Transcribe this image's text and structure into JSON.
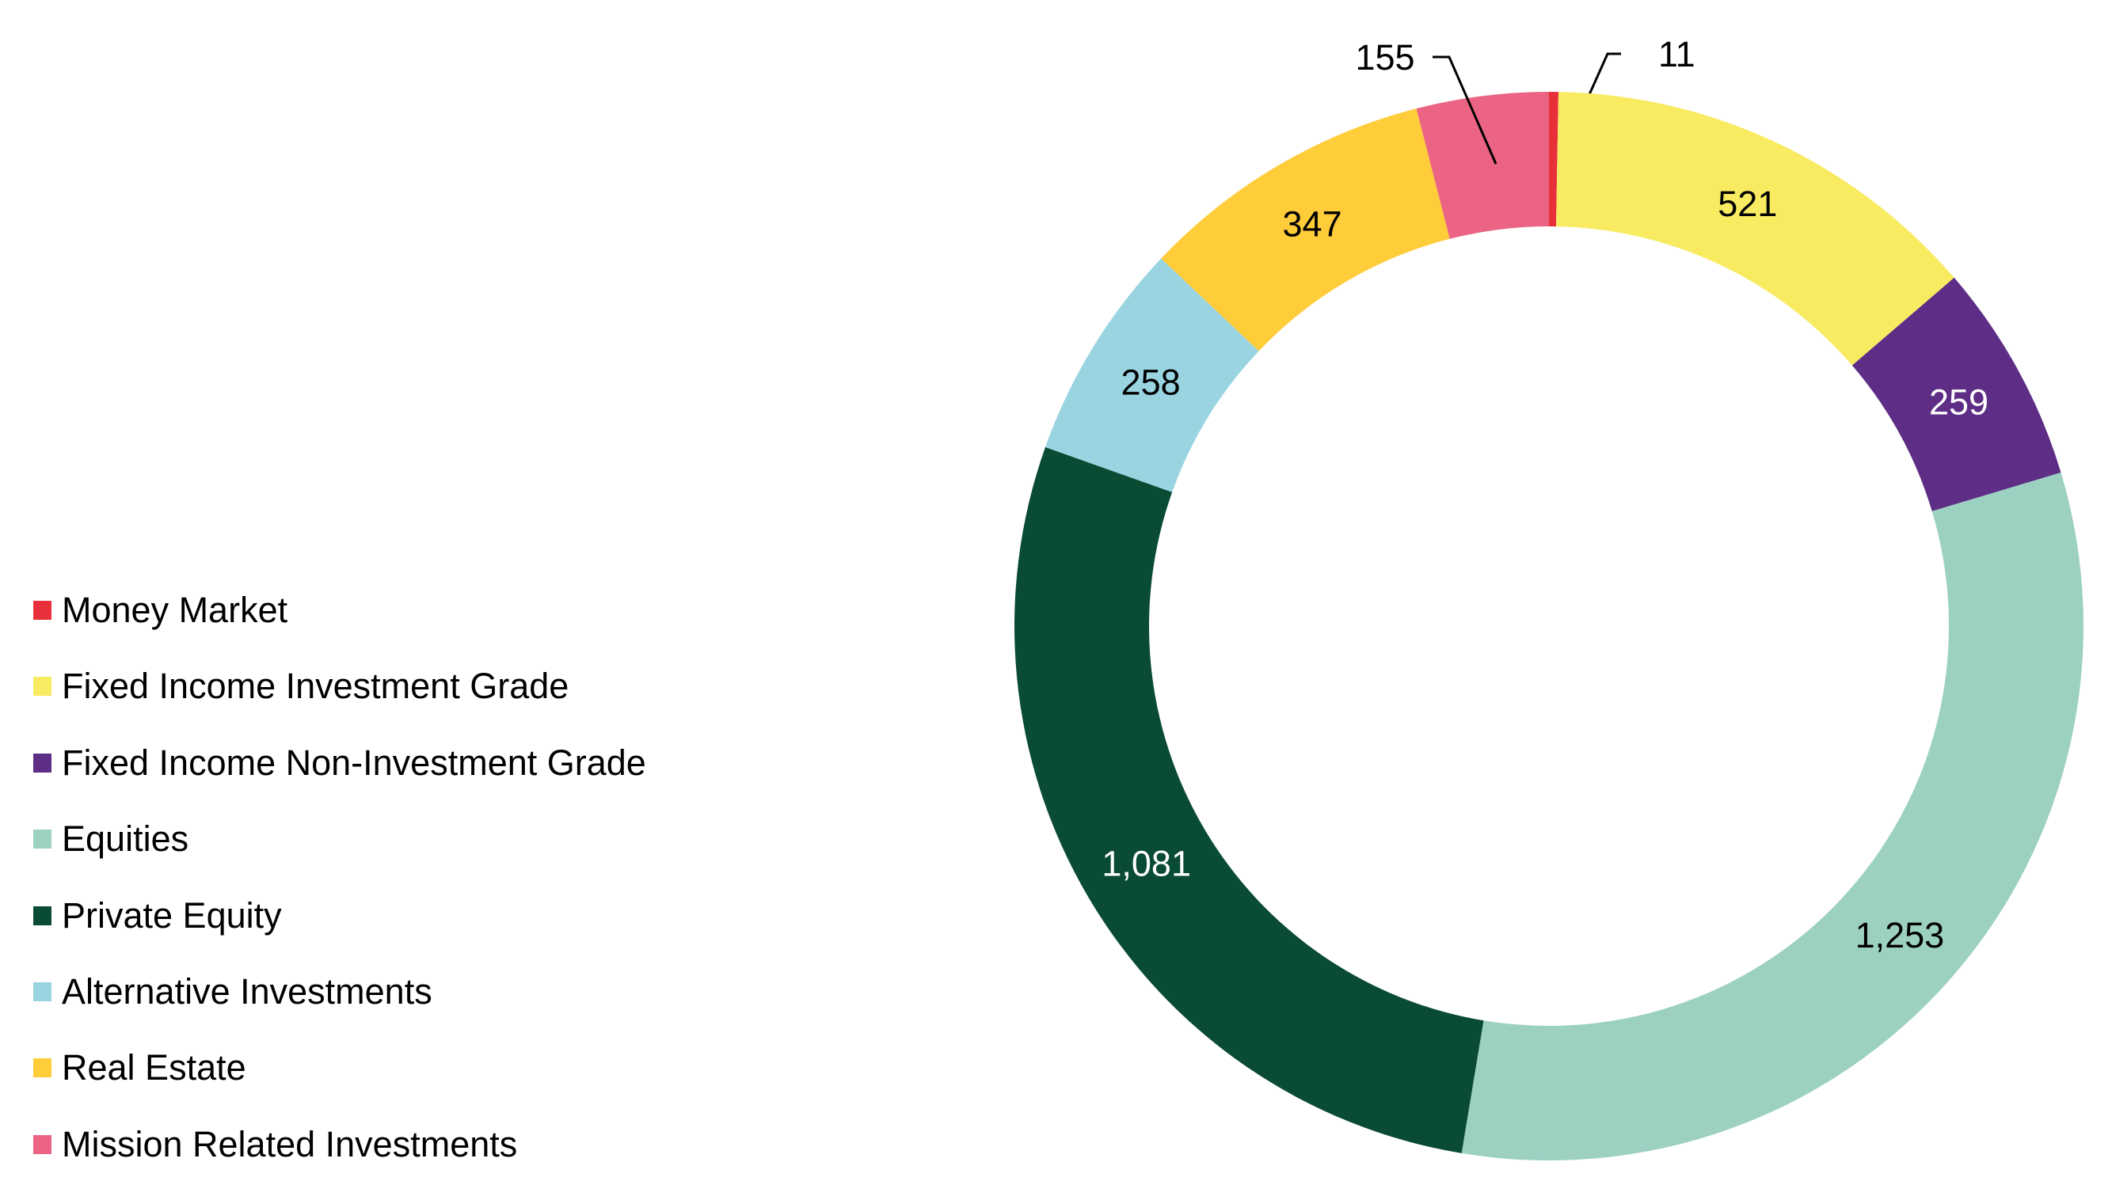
{
  "chart_data": {
    "type": "pie",
    "variant": "donut",
    "title": "",
    "legend_position": "left",
    "series": [
      {
        "name": "Money Market",
        "value": 11,
        "label": "11",
        "color": "#E8303A",
        "label_color": "#000000"
      },
      {
        "name": "Fixed Income Investment Grade",
        "value": 521,
        "label": "521",
        "color": "#F8EB62",
        "label_color": "#000000"
      },
      {
        "name": "Fixed Income Non-Investment Grade",
        "value": 259,
        "label": "259",
        "color": "#5E2D86",
        "label_color": "#FFFFFF"
      },
      {
        "name": "Equities",
        "value": 1253,
        "label": "1,253",
        "color": "#9CD1C2",
        "label_color": "#000000"
      },
      {
        "name": "Private Equity",
        "value": 1081,
        "label": "1,081",
        "color": "#0A4B33",
        "label_color": "#FFFFFF"
      },
      {
        "name": "Alternative Investments",
        "value": 258,
        "label": "258",
        "color": "#9AD4E1",
        "label_color": "#000000"
      },
      {
        "name": "Real Estate",
        "value": 347,
        "label": "347",
        "color": "#FFCC3A",
        "label_color": "#000000"
      },
      {
        "name": "Mission Related Investments",
        "value": 155,
        "label": "155",
        "color": "#EB6483",
        "label_color": "#000000"
      }
    ]
  }
}
